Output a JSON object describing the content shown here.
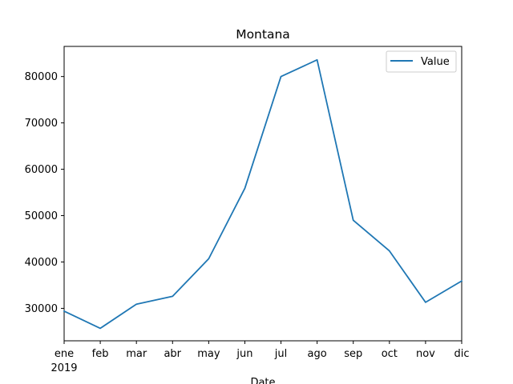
{
  "chart_data": {
    "type": "line",
    "title": "Montana",
    "xlabel": "Date",
    "ylabel": "",
    "categories": [
      "ene",
      "feb",
      "mar",
      "abr",
      "may",
      "jun",
      "jul",
      "ago",
      "sep",
      "oct",
      "nov",
      "dic"
    ],
    "year_label": "2019",
    "series": [
      {
        "name": "Value",
        "color": "#1f77b4",
        "values": [
          29400,
          25700,
          30900,
          32600,
          40700,
          55900,
          80000,
          83600,
          49000,
          42400,
          31300,
          35900
        ]
      }
    ],
    "ylim": [
      23000,
      86500
    ],
    "yticks": [
      30000,
      40000,
      50000,
      60000,
      70000,
      80000
    ],
    "ytick_labels": [
      "30000",
      "40000",
      "50000",
      "60000",
      "70000",
      "80000"
    ],
    "grid": false,
    "legend_position": "top-right"
  }
}
